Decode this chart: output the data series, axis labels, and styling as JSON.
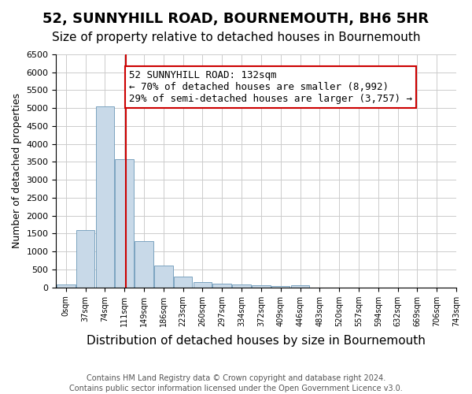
{
  "title": "52, SUNNYHILL ROAD, BOURNEMOUTH, BH6 5HR",
  "subtitle": "Size of property relative to detached houses in Bournemouth",
  "xlabel": "Distribution of detached houses by size in Bournemouth",
  "ylabel": "Number of detached properties",
  "bin_labels": [
    "0sqm",
    "37sqm",
    "74sqm",
    "111sqm",
    "149sqm",
    "186sqm",
    "223sqm",
    "260sqm",
    "297sqm",
    "334sqm",
    "372sqm",
    "409sqm",
    "446sqm",
    "483sqm",
    "520sqm",
    "557sqm",
    "594sqm",
    "632sqm",
    "669sqm",
    "706sqm",
    "743sqm"
  ],
  "bar_heights": [
    75,
    1600,
    5050,
    3570,
    1300,
    600,
    290,
    150,
    110,
    75,
    50,
    30,
    50,
    0,
    0,
    0,
    0,
    0,
    0,
    0
  ],
  "bar_color": "#c8d9e8",
  "bar_edgecolor": "#7ba3c0",
  "vline_x": 132,
  "vline_color": "#cc0000",
  "annotation_box_text": "52 SUNNYHILL ROAD: 132sqm\n← 70% of detached houses are smaller (8,992)\n29% of semi-detached houses are larger (3,757) →",
  "annotation_box_color": "#cc0000",
  "annotation_fontsize": 9,
  "ylim": [
    0,
    6500
  ],
  "yticks": [
    0,
    500,
    1000,
    1500,
    2000,
    2500,
    3000,
    3500,
    4000,
    4500,
    5000,
    5500,
    6000,
    6500
  ],
  "grid_color": "#cccccc",
  "background_color": "#ffffff",
  "footnote1": "Contains HM Land Registry data © Crown copyright and database right 2024.",
  "footnote2": "Contains public sector information licensed under the Open Government Licence v3.0.",
  "title_fontsize": 13,
  "subtitle_fontsize": 11,
  "xlabel_fontsize": 11,
  "ylabel_fontsize": 9
}
